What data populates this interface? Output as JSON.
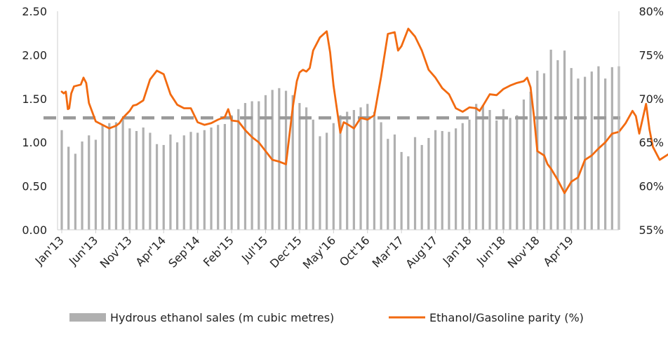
{
  "chart_data": {
    "type": "bar+line",
    "title": "",
    "colors": {
      "bars": "#b0b0b0",
      "line": "#f26a10",
      "reference": "#9a9a9a",
      "axis": "#cfcfcf"
    },
    "left_axis": {
      "range": [
        0,
        2.5
      ],
      "ticks": [
        "0.00",
        "0.50",
        "1.00",
        "1.50",
        "2.00",
        "2.50"
      ]
    },
    "right_axis": {
      "range": [
        55,
        80
      ],
      "ticks": [
        "55%",
        "60%",
        "65%",
        "70%",
        "75%",
        "80%"
      ]
    },
    "x_tick_labels": [
      "Jan'13",
      "Jun'13",
      "Nov'13",
      "Apr'14",
      "Sep'14",
      "Feb'15",
      "Jul'15",
      "Dec'15",
      "May'16",
      "Oct'16",
      "Mar'17",
      "Aug'17",
      "Jan'18",
      "Jun'18",
      "Nov'18",
      "Apr'19"
    ],
    "start_month": "Jan'13",
    "reference_line": {
      "axis": "right",
      "value": 67.8,
      "style": "dashed"
    },
    "legend": [
      {
        "type": "bar",
        "label": "Hydrous ethanol sales (m cubic metres)"
      },
      {
        "type": "line",
        "label": "Ethanol/Gasoline parity (%)"
      }
    ],
    "bars": {
      "name": "Hydrous ethanol sales (m cubic metres)",
      "values": [
        1.14,
        0.95,
        0.87,
        1.01,
        1.08,
        1.03,
        1.2,
        1.22,
        1.23,
        1.26,
        1.16,
        1.13,
        1.17,
        1.11,
        0.98,
        0.97,
        1.09,
        1.0,
        1.08,
        1.12,
        1.11,
        1.14,
        1.17,
        1.2,
        1.21,
        1.31,
        1.38,
        1.45,
        1.47,
        1.47,
        1.54,
        1.6,
        1.62,
        1.59,
        1.54,
        1.45,
        1.4,
        1.26,
        1.07,
        1.11,
        1.22,
        1.31,
        1.35,
        1.37,
        1.4,
        1.44,
        1.35,
        1.23,
        1.04,
        1.09,
        0.89,
        0.84,
        1.06,
        0.97,
        1.05,
        1.14,
        1.13,
        1.12,
        1.16,
        1.22,
        1.26,
        1.44,
        1.43,
        1.37,
        1.25,
        1.38,
        1.28,
        1.31,
        1.49,
        1.58,
        1.82,
        1.79,
        2.06,
        1.94,
        2.05,
        1.85,
        1.73,
        1.75,
        1.81,
        1.87,
        1.73,
        1.86,
        1.87
      ]
    },
    "line": {
      "name": "Ethanol/Gasoline parity (%)",
      "points": [
        [
          0,
          70.8
        ],
        [
          0.3,
          70.6
        ],
        [
          0.6,
          70.8
        ],
        [
          0.9,
          68.8
        ],
        [
          1.1,
          68.9
        ],
        [
          1.4,
          70.6
        ],
        [
          1.8,
          71.4
        ],
        [
          2.3,
          71.5
        ],
        [
          2.8,
          71.6
        ],
        [
          3.2,
          72.4
        ],
        [
          3.6,
          71.8
        ],
        [
          4.0,
          69.5
        ],
        [
          5.0,
          67.4
        ],
        [
          6.0,
          67.0
        ],
        [
          7.0,
          66.6
        ],
        [
          8.0,
          66.9
        ],
        [
          8.5,
          67.2
        ],
        [
          9.0,
          67.8
        ],
        [
          10.0,
          68.6
        ],
        [
          10.5,
          69.2
        ],
        [
          11.0,
          69.3
        ],
        [
          12.0,
          69.8
        ],
        [
          13.0,
          72.2
        ],
        [
          14.0,
          73.2
        ],
        [
          15.0,
          72.8
        ],
        [
          16.0,
          70.5
        ],
        [
          17.0,
          69.3
        ],
        [
          18.0,
          68.9
        ],
        [
          19.0,
          68.9
        ],
        [
          20.0,
          67.3
        ],
        [
          21.0,
          67.0
        ],
        [
          22.0,
          67.2
        ],
        [
          23.0,
          67.6
        ],
        [
          24.0,
          67.9
        ],
        [
          24.5,
          68.8
        ],
        [
          25.0,
          67.5
        ],
        [
          26.0,
          67.4
        ],
        [
          27.0,
          66.4
        ],
        [
          28.0,
          65.6
        ],
        [
          29.0,
          65.0
        ],
        [
          30.0,
          64.0
        ],
        [
          31.0,
          63.0
        ],
        [
          32.0,
          62.8
        ],
        [
          33.0,
          62.5
        ],
        [
          34.0,
          69.0
        ],
        [
          34.6,
          72.0
        ],
        [
          35.0,
          73.0
        ],
        [
          35.5,
          73.3
        ],
        [
          36.0,
          73.1
        ],
        [
          36.5,
          73.5
        ],
        [
          37.0,
          75.5
        ],
        [
          38.0,
          77.0
        ],
        [
          39.0,
          77.7
        ],
        [
          39.5,
          75.3
        ],
        [
          40.0,
          71.5
        ],
        [
          41.0,
          66.1
        ],
        [
          41.5,
          67.3
        ],
        [
          42.0,
          67.1
        ],
        [
          43.0,
          66.6
        ],
        [
          44.0,
          67.8
        ],
        [
          45.0,
          67.6
        ],
        [
          46.0,
          68.1
        ],
        [
          47.0,
          72.5
        ],
        [
          48.0,
          77.4
        ],
        [
          49.0,
          77.6
        ],
        [
          49.5,
          75.5
        ],
        [
          50.0,
          76.0
        ],
        [
          51.0,
          78.0
        ],
        [
          52.0,
          77.1
        ],
        [
          53.0,
          75.5
        ],
        [
          54.0,
          73.3
        ],
        [
          55.0,
          72.4
        ],
        [
          56.0,
          71.2
        ],
        [
          57.0,
          70.5
        ],
        [
          58.0,
          68.9
        ],
        [
          59.0,
          68.5
        ],
        [
          60.0,
          69.0
        ],
        [
          61.0,
          68.9
        ],
        [
          61.5,
          68.6
        ],
        [
          62.0,
          69.2
        ],
        [
          63.0,
          70.5
        ],
        [
          64.0,
          70.4
        ],
        [
          65.0,
          71.1
        ],
        [
          66.0,
          71.5
        ],
        [
          67.0,
          71.8
        ],
        [
          68.0,
          72.0
        ],
        [
          68.5,
          72.4
        ],
        [
          69.0,
          71.3
        ],
        [
          69.5,
          68.0
        ],
        [
          70.0,
          64.0
        ],
        [
          71.0,
          63.5
        ],
        [
          71.5,
          62.5
        ],
        [
          72.0,
          62.0
        ],
        [
          73.0,
          60.7
        ],
        [
          74.0,
          59.2
        ],
        [
          75.0,
          60.5
        ],
        [
          76.0,
          61.0
        ],
        [
          77.0,
          63.0
        ],
        [
          78.0,
          63.5
        ],
        [
          79.0,
          64.3
        ],
        [
          80.0,
          65.0
        ],
        [
          81.0,
          66.0
        ],
        [
          82.0,
          66.2
        ],
        [
          83.0,
          67.2
        ],
        [
          84.0,
          68.6
        ],
        [
          84.5,
          68.0
        ],
        [
          85.0,
          66.0
        ],
        [
          86.0,
          69.4
        ],
        [
          86.5,
          66.5
        ],
        [
          87.0,
          64.5
        ],
        [
          88.0,
          63.0
        ],
        [
          89.0,
          63.5
        ],
        [
          90.0,
          64.0
        ],
        [
          91.0,
          65.0
        ],
        [
          92.0,
          66.5
        ],
        [
          93.0,
          66.3
        ],
        [
          94.0,
          66.0
        ],
        [
          95.0,
          66.3
        ]
      ]
    }
  },
  "legend": {
    "bars_label": "Hydrous ethanol sales (m cubic metres)",
    "line_label": "Ethanol/Gasoline parity (%)"
  }
}
